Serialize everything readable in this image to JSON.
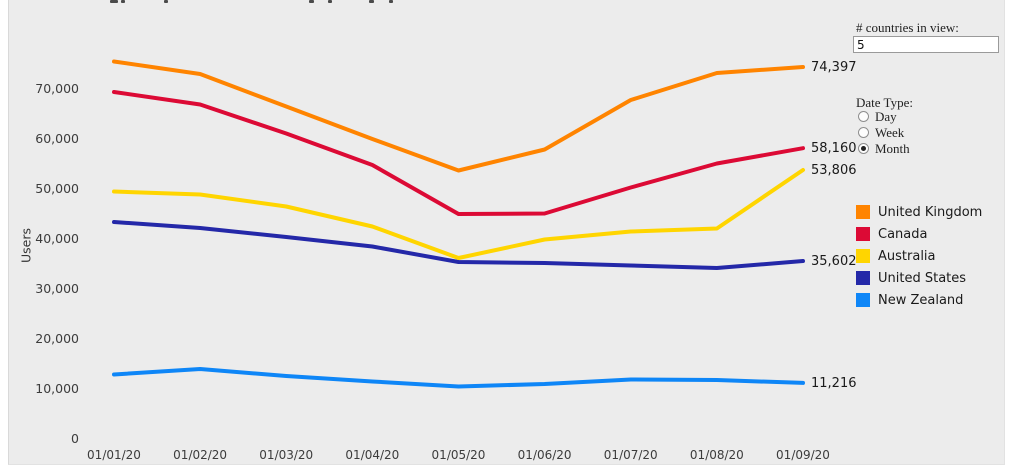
{
  "controls": {
    "countries_in_view": {
      "label": "# countries in view:",
      "value": "5"
    },
    "date_type": {
      "label": "Date Type:",
      "options": [
        {
          "label": "Day",
          "selected": false
        },
        {
          "label": "Week",
          "selected": false
        },
        {
          "label": "Month",
          "selected": true
        }
      ]
    }
  },
  "chart_data": {
    "type": "line",
    "title": "",
    "xlabel": "",
    "ylabel": "Users",
    "grid": false,
    "legend_position": "right",
    "ylim": [
      0,
      78000
    ],
    "yticks": [
      {
        "value": 0,
        "label": "0"
      },
      {
        "value": 10000,
        "label": "10,000"
      },
      {
        "value": 20000,
        "label": "20,000"
      },
      {
        "value": 30000,
        "label": "30,000"
      },
      {
        "value": 40000,
        "label": "40,000"
      },
      {
        "value": 50000,
        "label": "50,000"
      },
      {
        "value": 60000,
        "label": "60,000"
      },
      {
        "value": 70000,
        "label": "70,000"
      }
    ],
    "x": [
      "01/01/20",
      "01/02/20",
      "01/03/20",
      "01/04/20",
      "01/05/20",
      "01/06/20",
      "01/07/20",
      "01/08/20",
      "01/09/20"
    ],
    "series": [
      {
        "name": "United Kingdom",
        "color": "#FF8400",
        "values": [
          75500,
          73000,
          66500,
          60000,
          53700,
          57900,
          67800,
          73200,
          74397
        ],
        "end_label": "74,397"
      },
      {
        "name": "Canada",
        "color": "#DC0A35",
        "values": [
          69400,
          66900,
          61100,
          54800,
          45000,
          45100,
          50300,
          55100,
          58160
        ],
        "end_label": "58,160"
      },
      {
        "name": "Australia",
        "color": "#FFD500",
        "values": [
          49500,
          48900,
          46500,
          42500,
          36200,
          39900,
          41500,
          42100,
          53806
        ],
        "end_label": "53,806"
      },
      {
        "name": "United States",
        "color": "#2428A8",
        "values": [
          43400,
          42200,
          40400,
          38500,
          35400,
          35200,
          34700,
          34200,
          35602
        ],
        "end_label": "35,602"
      },
      {
        "name": "New Zealand",
        "color": "#0E86F7",
        "values": [
          12900,
          14000,
          12600,
          11500,
          10500,
          11000,
          11900,
          11800,
          11216
        ],
        "end_label": "11,216"
      }
    ]
  }
}
